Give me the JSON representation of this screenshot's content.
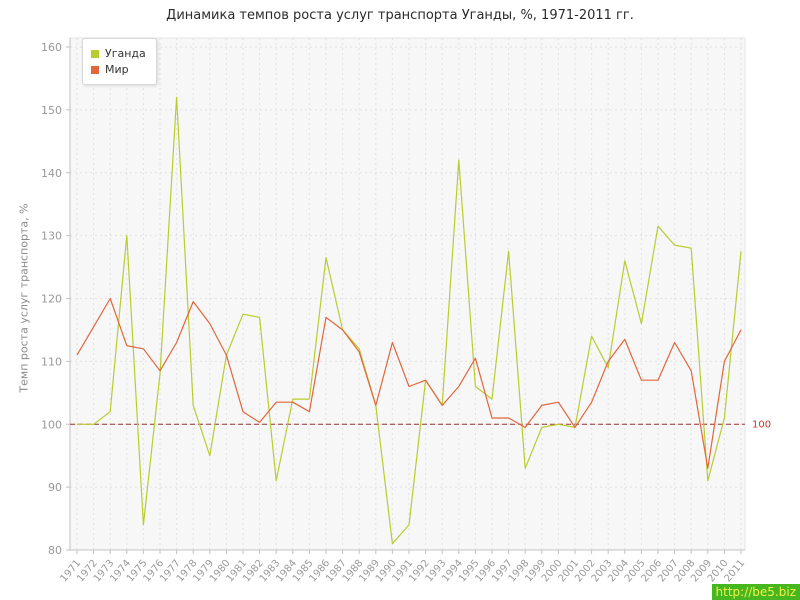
{
  "chart_data": {
    "type": "line",
    "title": "Динамика темпов роста услуг транспорта Уганды, %, 1971-2011 гг.",
    "xlabel": "",
    "ylabel": "Темп роста услуг транспорта, %",
    "ylim": [
      80,
      160
    ],
    "ytick_step": 10,
    "grid": true,
    "grid_style": "dashed",
    "legend_position": "top-left",
    "plot_background": "#f7f7f7",
    "reference_line": {
      "value": 100,
      "label": "100",
      "color": "#993333",
      "label_color": "#cc3333"
    },
    "x": [
      "1971",
      "1972",
      "1973",
      "1974",
      "1975",
      "1976",
      "1977",
      "1978",
      "1979",
      "1980",
      "1981",
      "1982",
      "1983",
      "1984",
      "1985",
      "1986",
      "1987",
      "1988",
      "1989",
      "1990",
      "1991",
      "1992",
      "1993",
      "1994",
      "1995",
      "1996",
      "1997",
      "1998",
      "1999",
      "2000",
      "2001",
      "2002",
      "2003",
      "2004",
      "2005",
      "2006",
      "2007",
      "2008",
      "2009",
      "2010",
      "2011"
    ],
    "series": [
      {
        "name": "Уганда",
        "color": "#b9cc2f",
        "values": [
          100,
          100,
          102,
          130,
          84,
          108,
          152,
          103,
          95,
          111,
          117.5,
          117,
          91,
          104,
          104,
          126.5,
          115,
          112,
          103,
          81,
          84,
          107,
          103,
          142,
          106,
          104,
          127.5,
          93,
          99.5,
          100,
          99.5,
          114,
          109,
          126,
          116,
          131.5,
          128.5,
          128,
          91,
          101,
          127.5
        ]
      },
      {
        "name": "Мир",
        "color": "#e2663b",
        "values": [
          111,
          115.5,
          120,
          112.5,
          112,
          108.5,
          113,
          119.5,
          116,
          111,
          102,
          100.3,
          103.5,
          103.5,
          102,
          117,
          115,
          111.5,
          103,
          113,
          106,
          107,
          103,
          106,
          110.5,
          101,
          101,
          99.5,
          103,
          103.5,
          99.5,
          103.5,
          110,
          113.5,
          107,
          107,
          113,
          108.5,
          93,
          110,
          115
        ]
      }
    ]
  },
  "watermark": {
    "text": "http://be5.biz"
  }
}
